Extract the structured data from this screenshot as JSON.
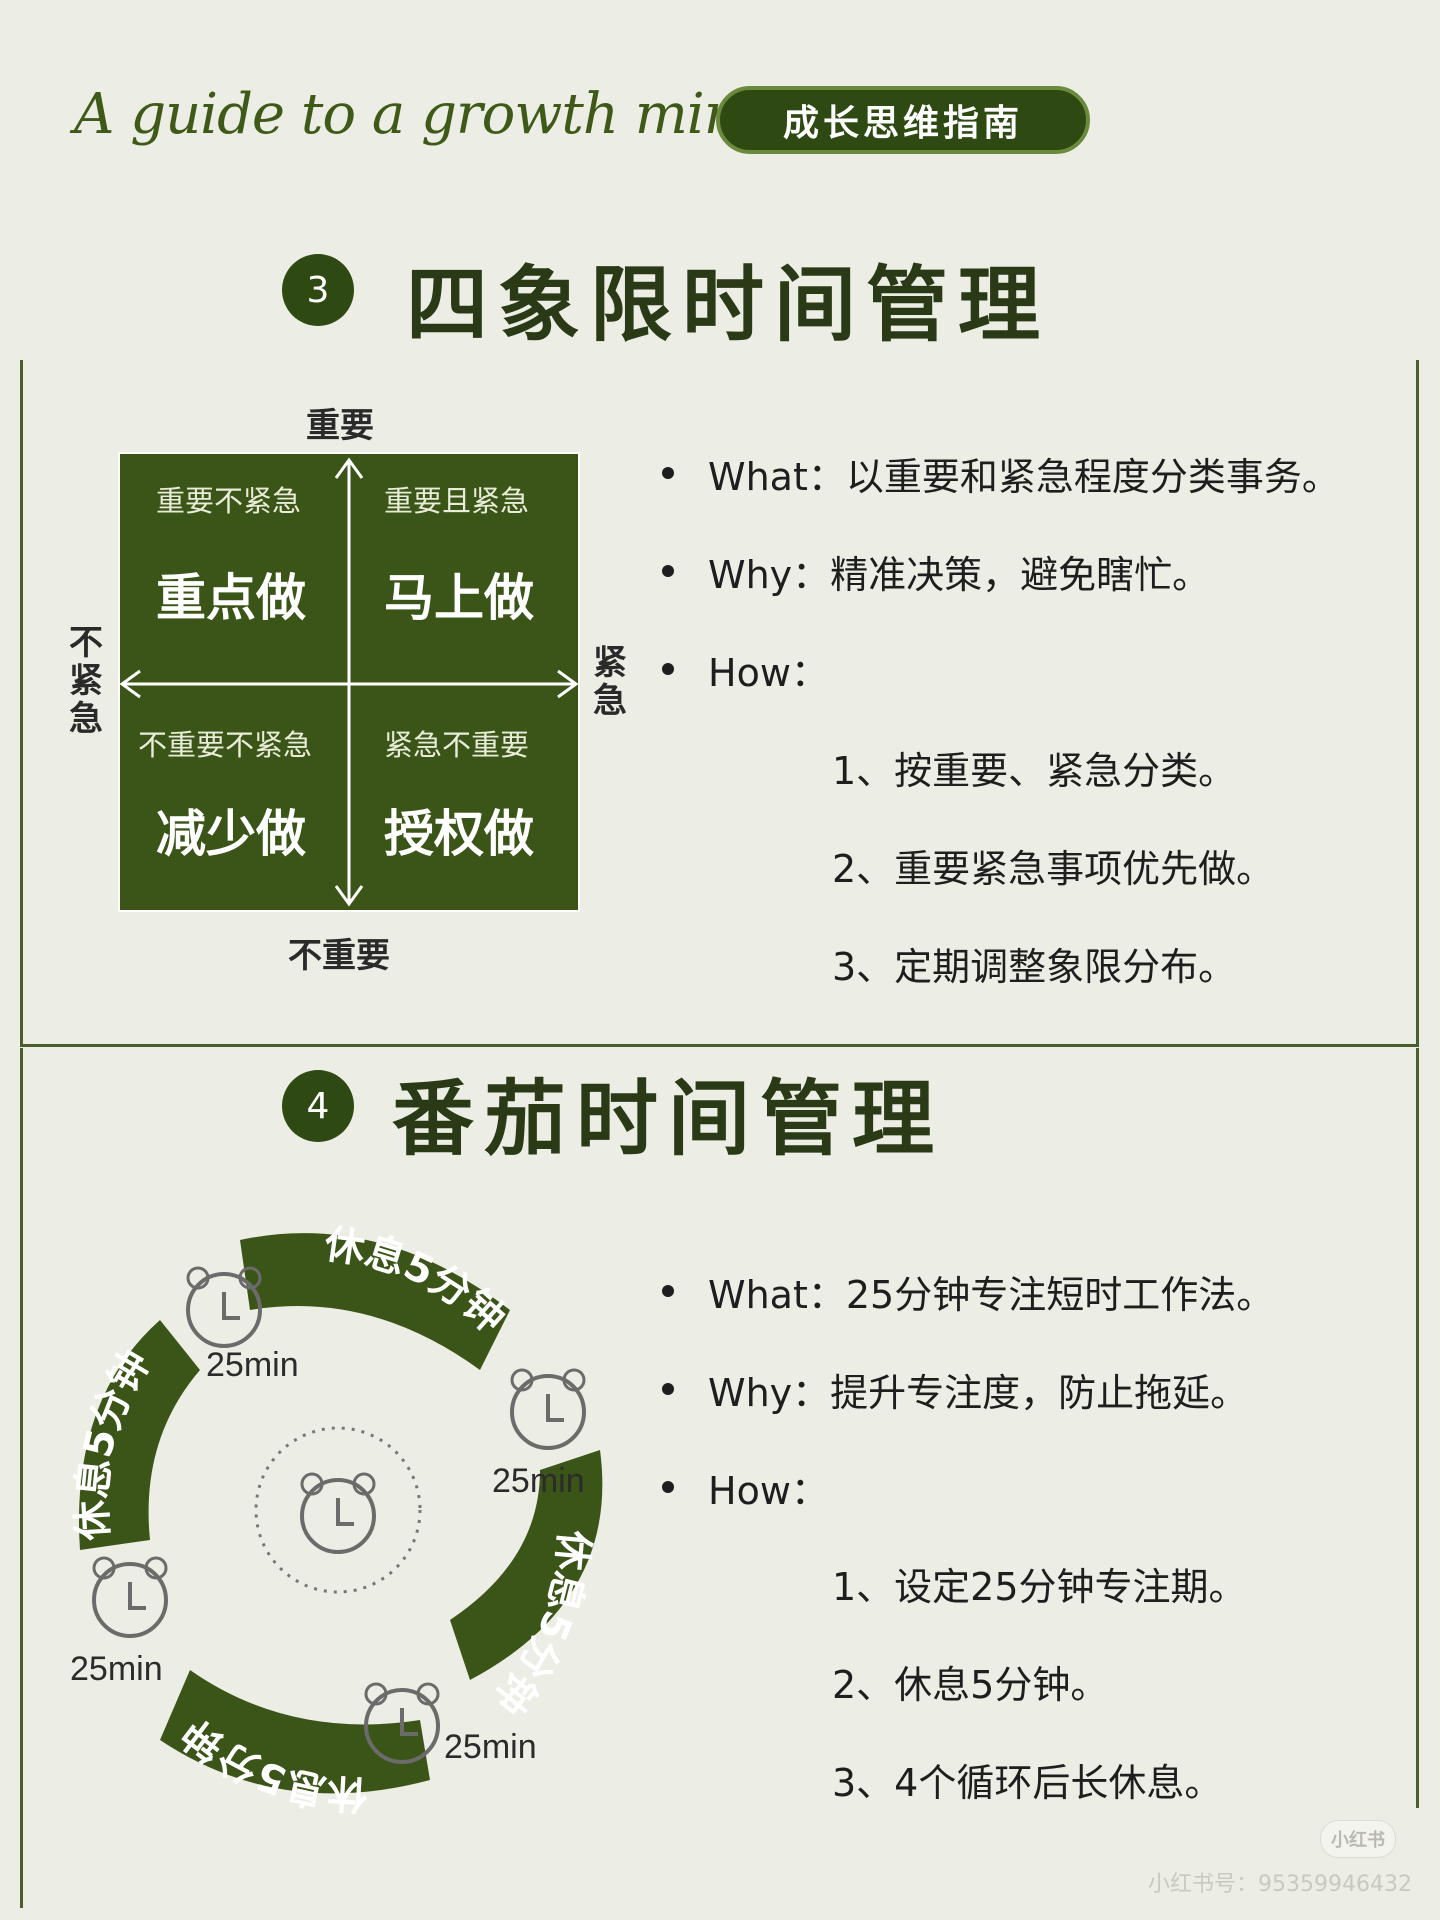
{
  "header": {
    "script_title": "A guide to a growth mindset",
    "badge": "成长思维指南"
  },
  "section3": {
    "number": "3",
    "title": "四象限时间管理",
    "axis": {
      "top": "重要",
      "bottom": "不重要",
      "left": "不紧急",
      "right": "紧急"
    },
    "quadrants": [
      {
        "sub": "重要不紧急",
        "main": "重点做"
      },
      {
        "sub": "重要且紧急",
        "main": "马上做"
      },
      {
        "sub": "不重要不紧急",
        "main": "减少做"
      },
      {
        "sub": "紧急不重要",
        "main": "授权做"
      }
    ],
    "bullets": [
      "What：以重要和紧急程度分类事务。",
      "Why：精准决策，避免瞎忙。",
      "How："
    ],
    "steps": [
      "1、按重要、紧急分类。",
      "2、重要紧急事项优先做。",
      "3、定期调整象限分布。"
    ]
  },
  "section4": {
    "number": "4",
    "title": "番茄时间管理",
    "cycle": {
      "work_label": "25min",
      "rest_label": "休息5分钟"
    },
    "bullets": [
      "What：25分钟专注短时工作法。",
      "Why：提升专注度，防止拖延。",
      "How："
    ],
    "steps": [
      "1、设定25分钟专注期。",
      "2、休息5分钟。",
      "3、4个循环后长休息。"
    ]
  },
  "watermark": {
    "badge": "小红书",
    "text": "小红书号：95359946432"
  },
  "colors": {
    "background": "#ecede4",
    "dark_green": "#2e4a12",
    "matrix_green": "#3b5518",
    "title_text": "#2b3a16"
  }
}
